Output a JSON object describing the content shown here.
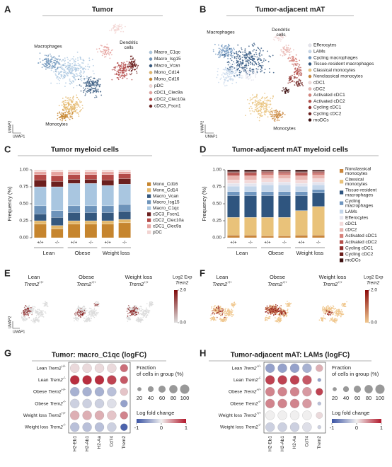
{
  "chart_data": [
    {
      "type": "umap",
      "panel": "A",
      "title": "Tumor",
      "xlabel": "UMAP1",
      "ylabel": "UMAP2",
      "cluster_labels": [
        "Macrophages",
        "Dendritic cells",
        "Monocytes"
      ],
      "legend": [
        {
          "name": "Macro_C1qc",
          "color": "#a9c6e0"
        },
        {
          "name": "Macro_Isg15",
          "color": "#6d93ba"
        },
        {
          "name": "Macro_Vcan",
          "color": "#35587e"
        },
        {
          "name": "Mono_Cd14",
          "color": "#e3b76a"
        },
        {
          "name": "Mono_Cd16",
          "color": "#c6852e"
        },
        {
          "name": "pDC",
          "color": "#f2d4d2"
        },
        {
          "name": "cDC1_Clec9a",
          "color": "#e6a39f"
        },
        {
          "name": "cDC2_Clec10a",
          "color": "#b44a48"
        },
        {
          "name": "cDC3_Fscn1",
          "color": "#6b1f1e"
        }
      ]
    },
    {
      "type": "umap",
      "panel": "B",
      "title": "Tumor-adjacent mAT",
      "xlabel": "UMAP1",
      "ylabel": "UMAP2",
      "cluster_labels": [
        "Macrophages",
        "Dendritic cells",
        "Monocytes"
      ],
      "legend": [
        {
          "name": "Efferocytes",
          "color": "#e4e4ee"
        },
        {
          "name": "LAMs",
          "color": "#c4d6ea"
        },
        {
          "name": "Cycling macrophages",
          "color": "#6f96bf"
        },
        {
          "name": "Tissue-resident macrophages",
          "color": "#2f557f"
        },
        {
          "name": "Classical monocytes",
          "color": "#e9c27a"
        },
        {
          "name": "Nonclassical monocytes",
          "color": "#c9853a"
        },
        {
          "name": "cDC1",
          "color": "#f3dada"
        },
        {
          "name": "cDC2",
          "color": "#e9b5b0"
        },
        {
          "name": "Activated cDC1",
          "color": "#d67f78"
        },
        {
          "name": "Activated cDC2",
          "color": "#b5504b"
        },
        {
          "name": "Cycling cDC1",
          "color": "#8f2e2b"
        },
        {
          "name": "Cycling cDC2",
          "color": "#6a1d1b"
        },
        {
          "name": "moDCs",
          "color": "#3d1010"
        }
      ]
    },
    {
      "type": "stacked_bar",
      "panel": "C",
      "title": "Tumor myeloid cells",
      "ylabel": "Frequency (%)",
      "categories": [
        "+/+",
        "-/-",
        "+/+",
        "-/-",
        "+/+",
        "-/-"
      ],
      "groups": [
        "Lean",
        "Obese",
        "Weight loss"
      ],
      "ylim": [
        0,
        1
      ],
      "yticks": [
        {
          "value": 0,
          "label": "0.00"
        },
        {
          "value": 0.25,
          "label": "0.25"
        },
        {
          "value": 0.5,
          "label": "0.50"
        },
        {
          "value": 0.75,
          "label": "0.75"
        },
        {
          "value": 1,
          "label": "1.00"
        }
      ],
      "series": [
        {
          "name": "Mono_Cd16",
          "color": "#c6852e",
          "values": [
            0.2,
            0.13,
            0.2,
            0.2,
            0.2,
            0.22
          ]
        },
        {
          "name": "Mono_Cd14",
          "color": "#e3b76a",
          "values": [
            0.05,
            0.05,
            0.05,
            0.05,
            0.05,
            0.05
          ]
        },
        {
          "name": "Macro_Vcan",
          "color": "#35587e",
          "values": [
            0.1,
            0.12,
            0.12,
            0.12,
            0.12,
            0.12
          ]
        },
        {
          "name": "Macro_Isg15",
          "color": "#6d93ba",
          "values": [
            0.12,
            0.1,
            0.1,
            0.1,
            0.1,
            0.1
          ]
        },
        {
          "name": "Macro_C1qc",
          "color": "#a9c6e0",
          "values": [
            0.28,
            0.35,
            0.33,
            0.33,
            0.3,
            0.3
          ]
        },
        {
          "name": "cDC3_Fscn1",
          "color": "#6b1f1e",
          "values": [
            0.1,
            0.08,
            0.06,
            0.06,
            0.08,
            0.08
          ]
        },
        {
          "name": "cDC2_Clec10a",
          "color": "#b44a48",
          "values": [
            0.08,
            0.08,
            0.07,
            0.07,
            0.08,
            0.07
          ]
        },
        {
          "name": "cDC1_Clec9a",
          "color": "#e6a39f",
          "values": [
            0.04,
            0.06,
            0.04,
            0.04,
            0.04,
            0.03
          ]
        },
        {
          "name": "pDC",
          "color": "#f2d4d2",
          "values": [
            0.03,
            0.03,
            0.03,
            0.03,
            0.03,
            0.03
          ]
        }
      ]
    },
    {
      "type": "stacked_bar",
      "panel": "D",
      "title": "Tumor-adjacent mAT myeloid cells",
      "ylabel": "Frequency (%)",
      "categories": [
        "+/+",
        "-/-",
        "+/+",
        "-/-",
        "+/+",
        "-/-"
      ],
      "groups": [
        "Lean",
        "Obese",
        "Weight loss"
      ],
      "ylim": [
        0,
        1
      ],
      "yticks": [
        {
          "value": 0,
          "label": "0.00"
        },
        {
          "value": 0.25,
          "label": "0.25"
        },
        {
          "value": 0.5,
          "label": "0.50"
        },
        {
          "value": 0.75,
          "label": "0.75"
        },
        {
          "value": 1,
          "label": "1.00"
        }
      ],
      "series": [
        {
          "name": "Nonclassical monocytes",
          "color": "#c9853a",
          "values": [
            0.04,
            0.04,
            0.03,
            0.03,
            0.04,
            0.04
          ]
        },
        {
          "name": "Classical monocytes",
          "color": "#e9c27a",
          "values": [
            0.26,
            0.26,
            0.27,
            0.27,
            0.36,
            0.42
          ]
        },
        {
          "name": "Tissue-resident macrophages",
          "color": "#2f557f",
          "values": [
            0.32,
            0.32,
            0.32,
            0.32,
            0.22,
            0.2
          ]
        },
        {
          "name": "Cycling macrophages",
          "color": "#6f96bf",
          "values": [
            0.06,
            0.06,
            0.06,
            0.06,
            0.06,
            0.05
          ]
        },
        {
          "name": "LAMs",
          "color": "#c4d6ea",
          "values": [
            0.08,
            0.08,
            0.1,
            0.1,
            0.08,
            0.07
          ]
        },
        {
          "name": "Efferocytes",
          "color": "#e4e4ee",
          "values": [
            0.04,
            0.04,
            0.04,
            0.04,
            0.04,
            0.04
          ]
        },
        {
          "name": "cDC1",
          "color": "#f3dada",
          "values": [
            0.05,
            0.05,
            0.05,
            0.05,
            0.05,
            0.05
          ]
        },
        {
          "name": "cDC2",
          "color": "#e9b5b0",
          "values": [
            0.05,
            0.05,
            0.05,
            0.05,
            0.05,
            0.05
          ]
        },
        {
          "name": "Activated cDC1",
          "color": "#d67f78",
          "values": [
            0.02,
            0.02,
            0.02,
            0.02,
            0.02,
            0.02
          ]
        },
        {
          "name": "Activated cDC2",
          "color": "#b5504b",
          "values": [
            0.03,
            0.03,
            0.02,
            0.02,
            0.03,
            0.02
          ]
        },
        {
          "name": "Cycling cDC1",
          "color": "#8f2e2b",
          "values": [
            0.01,
            0.01,
            0.01,
            0.01,
            0.01,
            0.01
          ]
        },
        {
          "name": "Cycling cDC2",
          "color": "#6a1d1b",
          "values": [
            0.01,
            0.01,
            0.01,
            0.01,
            0.01,
            0.01
          ]
        },
        {
          "name": "moDCs",
          "color": "#3d1010",
          "values": [
            0.03,
            0.03,
            0.02,
            0.02,
            0.03,
            0.02
          ]
        }
      ]
    },
    {
      "type": "feature_umap",
      "panel": "E",
      "xlabel": "UMAP1",
      "ylabel": "UMAP2",
      "maps": [
        {
          "group": "Lean",
          "gene": "Trem2",
          "genotype": "+/+"
        },
        {
          "group": "Obese",
          "gene": "Trem2",
          "genotype": "+/+"
        },
        {
          "group": "Weight loss",
          "gene": "Trem2",
          "genotype": "+/+"
        }
      ],
      "colorbar_title": "Log2 Exp",
      "colorbar_gene": "Trem2",
      "clim": [
        0,
        2
      ],
      "cticks": [
        {
          "value": 0,
          "label": "0.0"
        },
        {
          "value": 2,
          "label": "2.0"
        }
      ],
      "colormap": [
        "#dcdcdc",
        "#7f0a0a"
      ]
    },
    {
      "type": "feature_umap",
      "panel": "F",
      "maps": [
        {
          "group": "Lean",
          "gene": "Trem2",
          "genotype": "+/+"
        },
        {
          "group": "Obese",
          "gene": "Trem2",
          "genotype": "+/+"
        },
        {
          "group": "Weight loss",
          "gene": "Trem2",
          "genotype": "+/+"
        }
      ],
      "colorbar_title": "Log2 Exp",
      "colorbar_gene": "Trem2",
      "clim": [
        0,
        2
      ],
      "cticks": [
        {
          "value": 0,
          "label": "0.0"
        },
        {
          "value": 2,
          "label": "2.0"
        }
      ],
      "colormap": [
        "#f0c890",
        "#8b0a0a"
      ]
    },
    {
      "type": "dot",
      "panel": "G",
      "title": "Tumor: macro_C1qc (logFC)",
      "rows": [
        {
          "group": "Lean",
          "gene": "Trem2",
          "genotype": "+/+"
        },
        {
          "group": "Lean",
          "gene": "Trem2",
          "genotype": "-/-"
        },
        {
          "group": "Obese",
          "gene": "Trem2",
          "genotype": "+/+"
        },
        {
          "group": "Obese",
          "gene": "Trem2",
          "genotype": "-/-"
        },
        {
          "group": "Weight loss",
          "gene": "Trem2",
          "genotype": "+/+"
        },
        {
          "group": "Weight loss",
          "gene": "Trem2",
          "genotype": "-/-"
        }
      ],
      "columns": [
        "H2-Eb1",
        "H2-Ab1",
        "H2-Aa",
        "Cd74",
        "Trem2"
      ],
      "values": [
        [
          0.1,
          0.1,
          0.1,
          0.1,
          0.6
        ],
        [
          0.9,
          0.9,
          0.9,
          0.8,
          0.7
        ],
        [
          -0.4,
          -0.4,
          -0.4,
          -0.3,
          0.2
        ],
        [
          -0.2,
          -0.2,
          -0.2,
          -0.1,
          -0.5
        ],
        [
          0.3,
          0.3,
          0.3,
          0.2,
          0.5
        ],
        [
          -0.3,
          -0.3,
          -0.3,
          -0.2,
          -0.9
        ]
      ],
      "sizes": [
        [
          100,
          100,
          100,
          100,
          70
        ],
        [
          100,
          100,
          100,
          100,
          70
        ],
        [
          100,
          100,
          100,
          100,
          70
        ],
        [
          100,
          100,
          100,
          100,
          60
        ],
        [
          100,
          100,
          100,
          100,
          70
        ],
        [
          100,
          100,
          100,
          100,
          60
        ]
      ],
      "size_title": "Fraction of cells in group (%)",
      "size_ticks": [
        20,
        40,
        60,
        80,
        100
      ],
      "color_title": "Log fold change",
      "clim": [
        -1,
        1
      ],
      "cticks": [
        -1,
        0,
        1
      ],
      "colormap": [
        "#3a53a4",
        "#f0efef",
        "#b2182b"
      ]
    },
    {
      "type": "dot",
      "panel": "H",
      "title": "Tumor-adjacent mAT: LAMs (logFC)",
      "rows": [
        {
          "group": "Lean",
          "gene": "Trem2",
          "genotype": "+/+"
        },
        {
          "group": "Lean",
          "gene": "Trem2",
          "genotype": "-/-"
        },
        {
          "group": "Obese",
          "gene": "Trem2",
          "genotype": "+/+"
        },
        {
          "group": "Obese",
          "gene": "Trem2",
          "genotype": "-/-"
        },
        {
          "group": "Weight loss",
          "gene": "Trem2",
          "genotype": "+/+"
        },
        {
          "group": "Weight loss",
          "gene": "Trem2",
          "genotype": "-/-"
        }
      ],
      "columns": [
        "H2-Eb1",
        "H2-Ab1",
        "H2-Aa",
        "Cd74",
        "Trem2"
      ],
      "values": [
        [
          -0.5,
          -0.5,
          -0.5,
          -0.4,
          0.3
        ],
        [
          0.8,
          0.8,
          0.8,
          0.7,
          -0.5
        ],
        [
          0.5,
          0.5,
          0.5,
          0.4,
          0.8
        ],
        [
          0.5,
          0.5,
          0.5,
          0.4,
          -0.3
        ],
        [
          0.0,
          0.0,
          0.0,
          0.0,
          0.1
        ],
        [
          -0.2,
          -0.2,
          -0.2,
          -0.1,
          -0.2
        ]
      ],
      "sizes": [
        [
          100,
          100,
          100,
          100,
          60
        ],
        [
          100,
          100,
          100,
          100,
          15
        ],
        [
          100,
          100,
          100,
          100,
          60
        ],
        [
          100,
          100,
          100,
          100,
          15
        ],
        [
          100,
          100,
          100,
          100,
          50
        ],
        [
          100,
          100,
          100,
          100,
          15
        ]
      ],
      "size_title": "Fraction of cells in group (%)",
      "size_ticks": [
        20,
        40,
        60,
        80,
        100
      ],
      "color_title": "Log fold change",
      "clim": [
        -1,
        1
      ],
      "cticks": [
        -1,
        0,
        1
      ],
      "colormap": [
        "#3a53a4",
        "#f0efef",
        "#b2182b"
      ]
    }
  ]
}
